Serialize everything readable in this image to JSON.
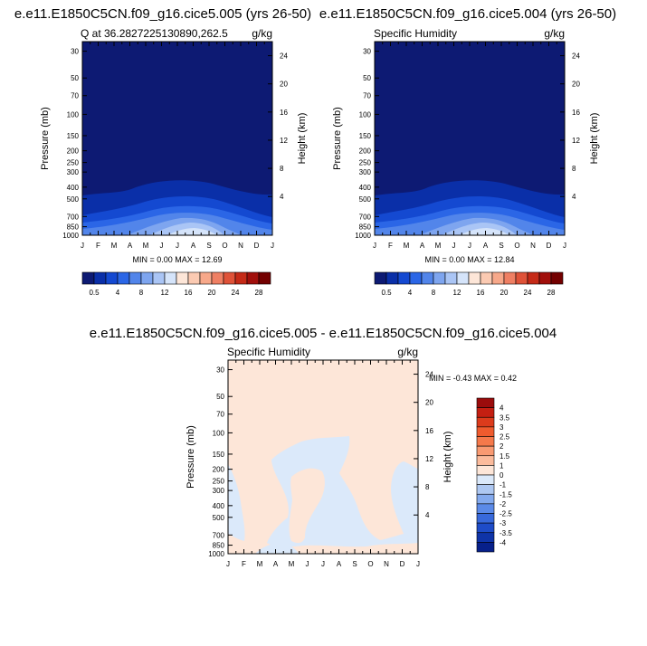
{
  "chart_data": [
    {
      "type": "heatmap",
      "title": "e.e11.E1850C5CN.f09_g16.cice5.005 (yrs 26-50)",
      "subtitle_left": "Q at 36.2827225130890,262.5",
      "subtitle_right": "g/kg",
      "xlabel": "",
      "ylabel": "Pressure (mb)",
      "ylabel_right": "Height (km)",
      "x_ticks": [
        "J",
        "F",
        "M",
        "A",
        "M",
        "J",
        "J",
        "A",
        "S",
        "O",
        "N",
        "D",
        "J"
      ],
      "y_ticks": [
        "30",
        "50",
        "70",
        "100",
        "150",
        "200",
        "250",
        "300",
        "400",
        "500",
        "700",
        "850",
        "1000"
      ],
      "y_ticks_right": [
        "24",
        "20",
        "16",
        "12",
        "8",
        "4"
      ],
      "stats": "MIN =   0.00 MAX =  12.69",
      "min": 0.0,
      "max": 12.69,
      "colorbar_levels": [
        "0.5",
        "4",
        "8",
        "12",
        "16",
        "20",
        "24",
        "28"
      ],
      "colorbar_colors": [
        "#0d1a73",
        "#0a2fa8",
        "#1449d1",
        "#2b66e6",
        "#5285ea",
        "#7ea5ef",
        "#aac5f5",
        "#d5e4fa",
        "#fde6d8",
        "#fbcab2",
        "#f7a88a",
        "#ef7f63",
        "#df5238",
        "#c52a17",
        "#a10f0b",
        "#730000"
      ]
    },
    {
      "type": "heatmap",
      "title": "e.e11.E1850C5CN.f09_g16.cice5.004 (yrs 26-50)",
      "subtitle_left": "Specific Humidity",
      "subtitle_right": "g/kg",
      "xlabel": "",
      "ylabel": "Pressure (mb)",
      "ylabel_right": "Height (km)",
      "x_ticks": [
        "J",
        "F",
        "M",
        "A",
        "M",
        "J",
        "J",
        "A",
        "S",
        "O",
        "N",
        "D",
        "J"
      ],
      "y_ticks": [
        "30",
        "50",
        "70",
        "100",
        "150",
        "200",
        "250",
        "300",
        "400",
        "500",
        "700",
        "850",
        "1000"
      ],
      "y_ticks_right": [
        "24",
        "20",
        "16",
        "12",
        "8",
        "4"
      ],
      "stats": "MIN =   0.00 MAX =  12.84",
      "min": 0.0,
      "max": 12.84,
      "colorbar_levels": [
        "0.5",
        "4",
        "8",
        "12",
        "16",
        "20",
        "24",
        "28"
      ]
    },
    {
      "type": "heatmap",
      "title": "e.e11.E1850C5CN.f09_g16.cice5.005 - e.e11.E1850C5CN.f09_g16.cice5.004",
      "subtitle_left": "Specific Humidity",
      "subtitle_right": "g/kg",
      "xlabel": "",
      "ylabel": "Pressure (mb)",
      "ylabel_right": "Height (km)",
      "x_ticks": [
        "J",
        "F",
        "M",
        "A",
        "M",
        "J",
        "J",
        "A",
        "S",
        "O",
        "N",
        "D",
        "J"
      ],
      "y_ticks": [
        "30",
        "50",
        "70",
        "100",
        "150",
        "200",
        "250",
        "300",
        "400",
        "500",
        "700",
        "850",
        "1000"
      ],
      "y_ticks_right": [
        "24",
        "20",
        "16",
        "12",
        "8",
        "4"
      ],
      "stats": "MIN =  -0.43 MAX =   0.42",
      "min": -0.43,
      "max": 0.42,
      "colorbar_levels": [
        "4",
        "3.5",
        "3",
        "2.5",
        "2",
        "1.5",
        "1",
        "0",
        "-1",
        "-1.5",
        "-2",
        "-2.5",
        "-3",
        "-3.5",
        "-4"
      ],
      "colorbar_colors": [
        "#9b0c0c",
        "#c41f12",
        "#dc3b1c",
        "#ef5b2e",
        "#f5794b",
        "#f99a72",
        "#fbbb9c",
        "#fde6d8",
        "#dbe9fa",
        "#aec8f2",
        "#84aaee",
        "#5b8ae8",
        "#3869db",
        "#1e4cc8",
        "#0f34a8",
        "#07208a"
      ]
    }
  ]
}
